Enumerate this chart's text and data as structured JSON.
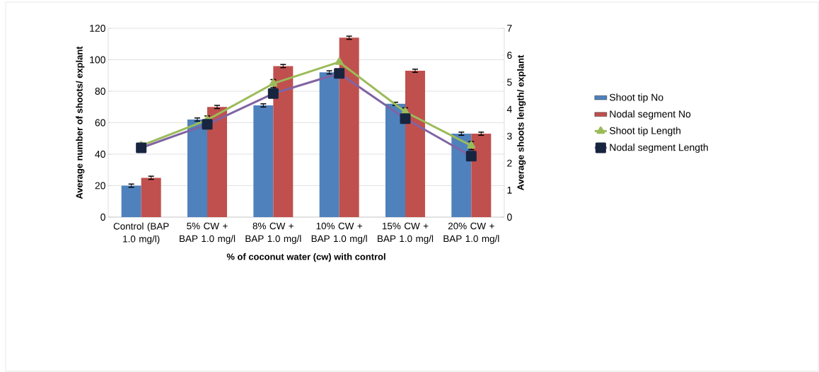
{
  "chart_data": {
    "type": "bar",
    "xlabel": "% of coconut water (cw) with control",
    "ylabel": "Average number of shoots/ explant",
    "y2label": "Average shoots length/ explant",
    "categories": [
      "Control (BAP 1.0 mg/l)",
      "5% CW + BAP 1.0 mg/l",
      "8% CW + BAP 1.0 mg/l",
      "10% CW + BAP 1.0 mg/l",
      "15% CW + BAP 1.0 mg/l",
      "20% CW + BAP 1.0 mg/l"
    ],
    "series": [
      {
        "name": "Shoot tip No",
        "color": "#4f81bd",
        "values": [
          20,
          62,
          71,
          92,
          72,
          53
        ],
        "errors": [
          1,
          1,
          1,
          1,
          1,
          1
        ]
      },
      {
        "name": "Nodal segment No",
        "color": "#c0504d",
        "values": [
          25,
          70,
          96,
          114,
          93,
          53
        ],
        "errors": [
          1,
          1,
          1,
          1,
          1,
          1
        ]
      },
      {
        "name": "Shoot tip Length",
        "type": "line",
        "axis": "y2",
        "color": "#9bbb59",
        "marker": "triangle",
        "values": [
          2.65,
          3.6,
          4.95,
          5.75,
          3.9,
          2.65
        ],
        "errors": [
          null,
          0.15,
          0.15,
          null,
          0.15,
          0.15
        ]
      },
      {
        "name": "Nodal segment Length",
        "type": "line",
        "axis": "y2",
        "color": "#8064a2",
        "marker": "square",
        "values": [
          2.57,
          3.44,
          4.58,
          5.33,
          3.65,
          2.26
        ]
      }
    ],
    "ylim": [
      0,
      120
    ],
    "yticks": [
      0,
      20,
      40,
      60,
      80,
      100,
      120
    ],
    "y2lim": [
      0,
      7
    ],
    "y2ticks": [
      0,
      1,
      2,
      3,
      4,
      5,
      6,
      7
    ],
    "grid": "y",
    "legend": "right"
  }
}
